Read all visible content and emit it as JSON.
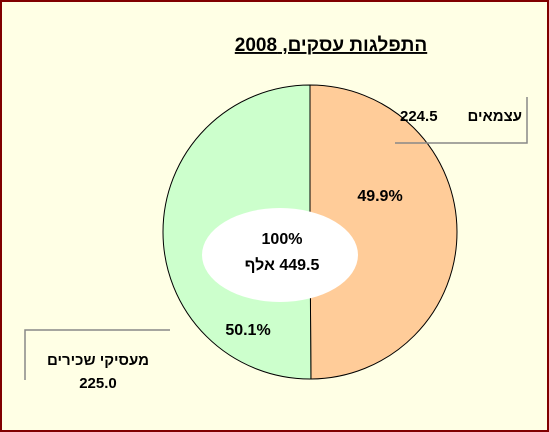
{
  "chart_data": {
    "type": "pie",
    "title": "התפלגות עסקים, 2008",
    "categories": [
      "עצמאים",
      "מעסיקי שכירים"
    ],
    "values": [
      49.9,
      50.1
    ],
    "value_labels": [
      "49.9%",
      "50.1%"
    ],
    "amounts": [
      "224.5",
      "225.0"
    ],
    "colors": [
      "#ffcc99",
      "#ccffcc"
    ],
    "center_labels": [
      "100%",
      "449.5 אלף"
    ]
  }
}
